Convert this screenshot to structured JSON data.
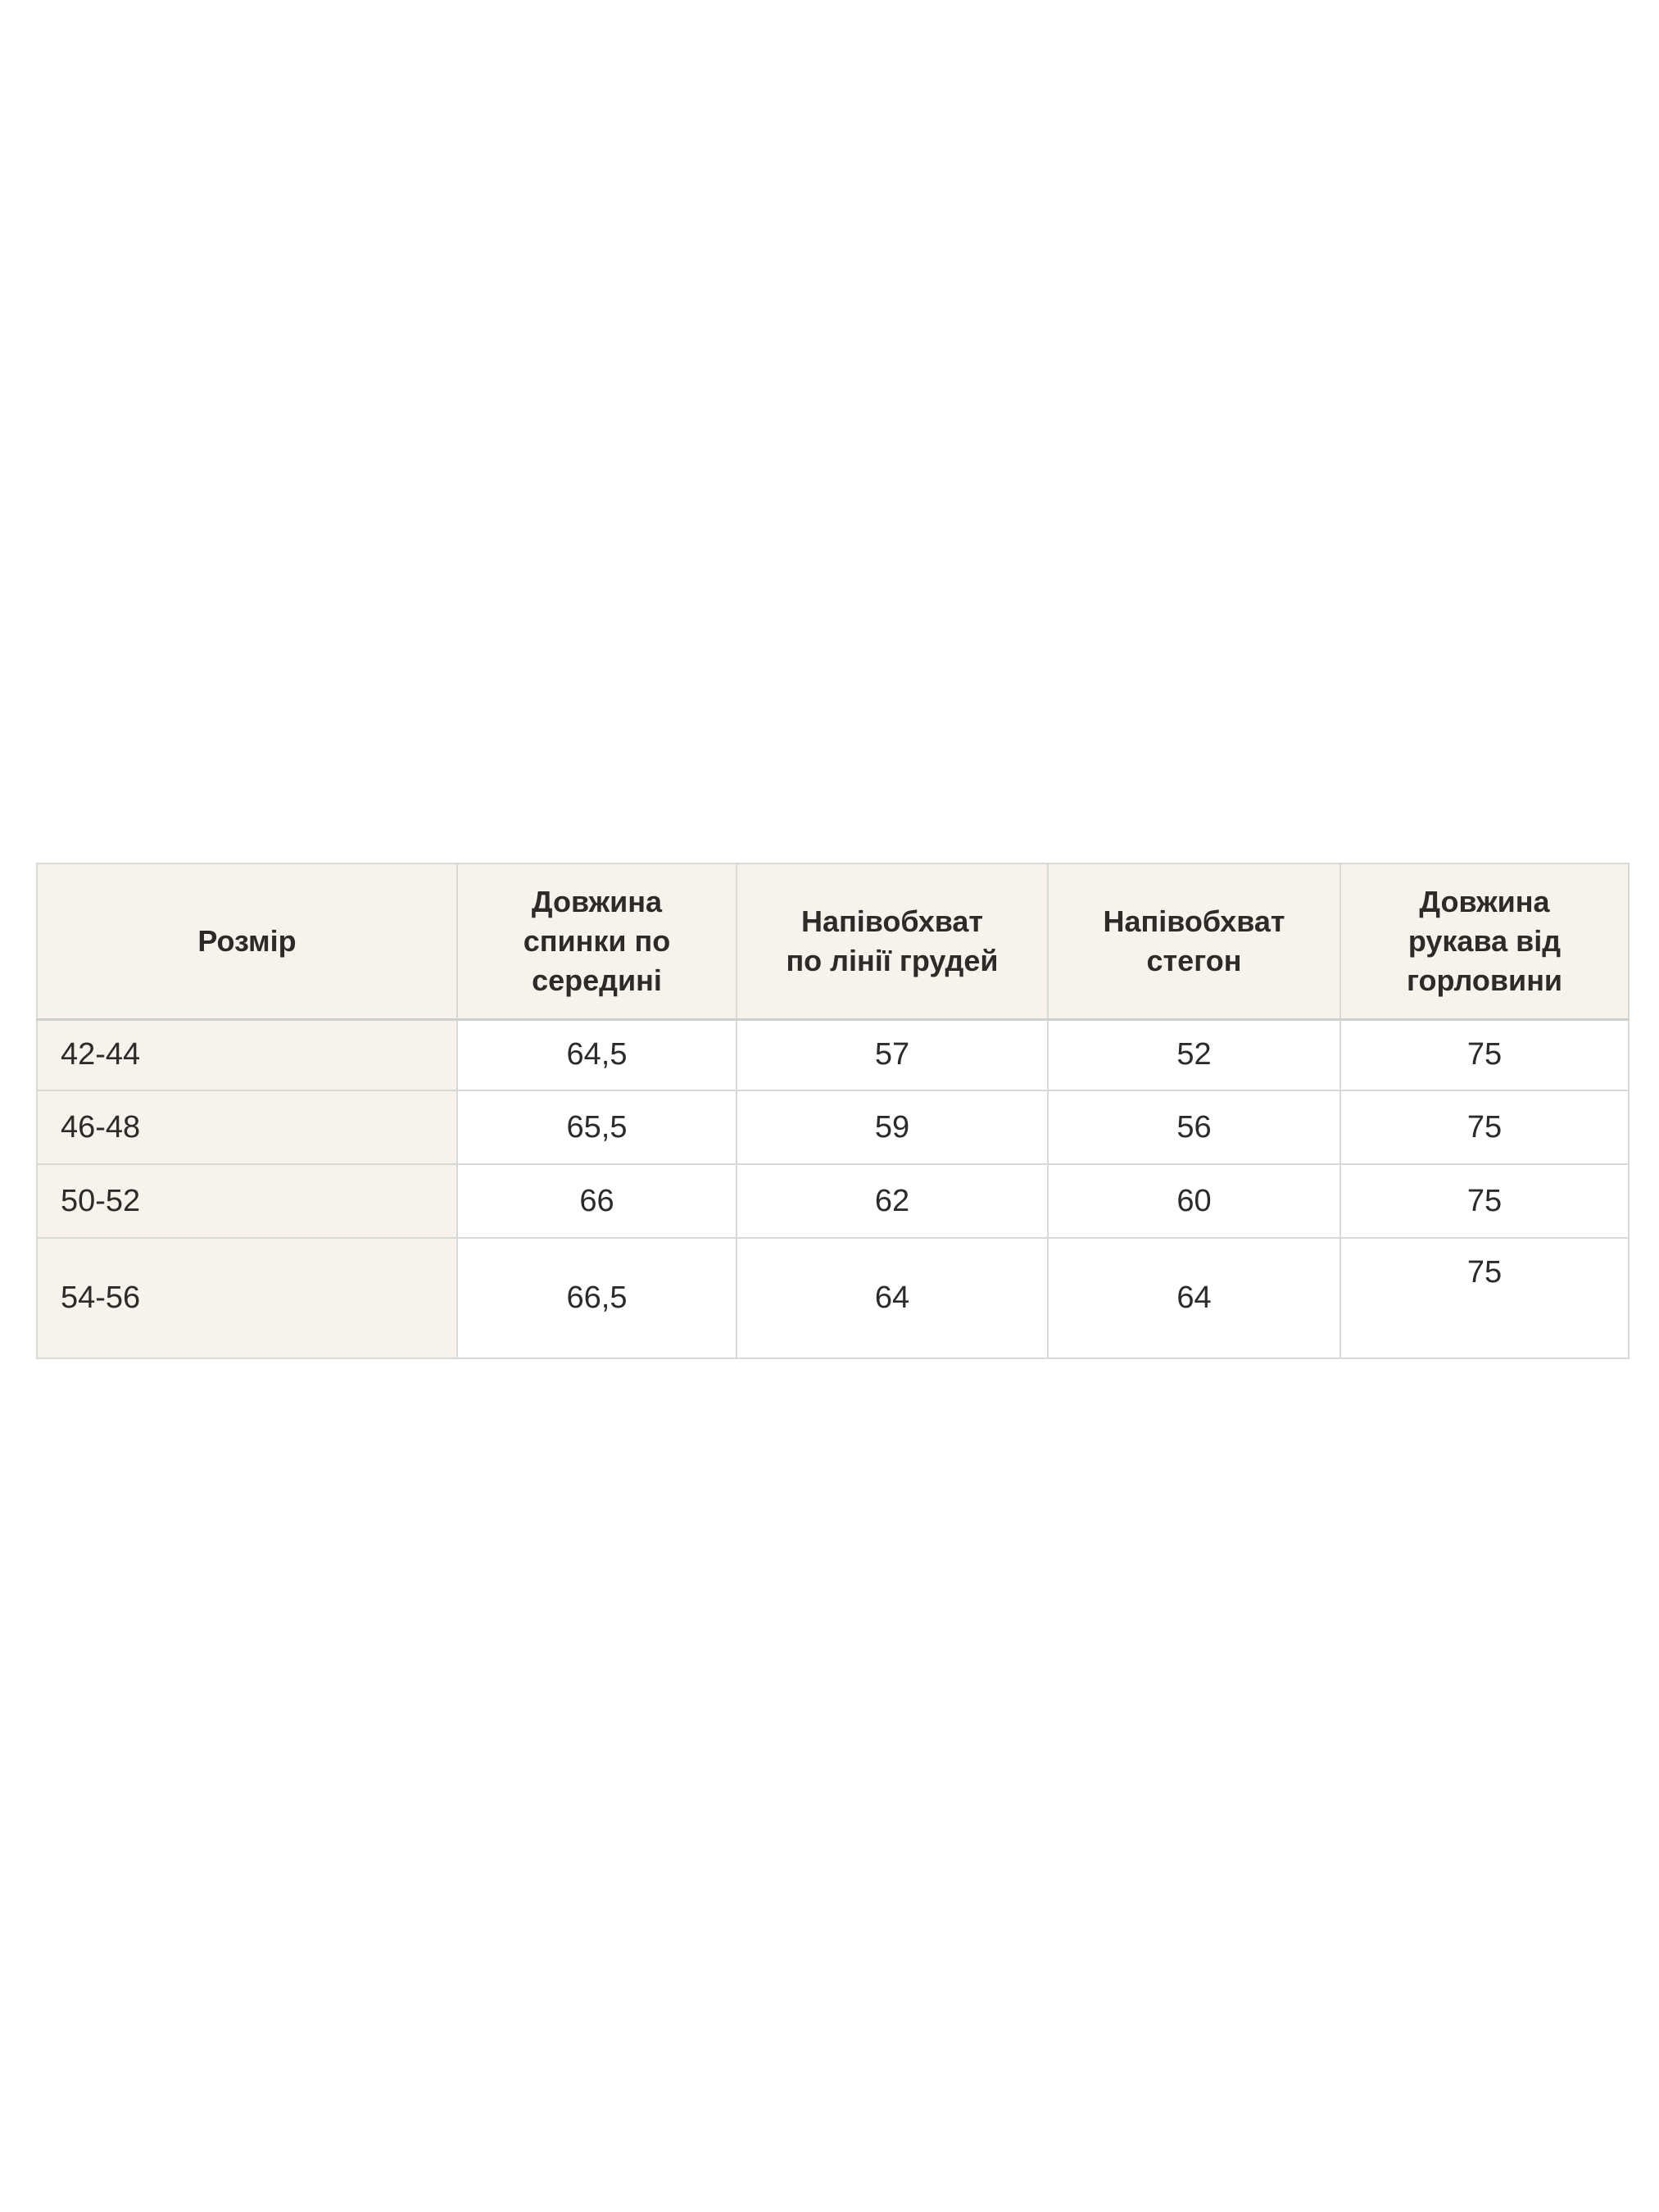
{
  "page": {
    "background": "#ffffff"
  },
  "table": {
    "colors": {
      "header_bg": "#f7f3ec",
      "border": "#d7dad5",
      "text": "#2d2b28"
    },
    "columns": [
      {
        "label": "Розмір"
      },
      {
        "label": "Довжина\nспинки по\nсередині"
      },
      {
        "label": "Напівобхват\nпо лінії грудей"
      },
      {
        "label": "Напівобхват\nстегон"
      },
      {
        "label": "Довжина\nрукава від\nгорловини"
      }
    ],
    "rows": [
      [
        "42-44",
        "64,5",
        "57",
        "52",
        "75"
      ],
      [
        "46-48",
        "65,5",
        "59",
        "56",
        "75"
      ],
      [
        "50-52",
        "66",
        "62",
        "60",
        "75"
      ],
      [
        "54-56",
        "66,5",
        "64",
        "64",
        "75"
      ]
    ]
  }
}
